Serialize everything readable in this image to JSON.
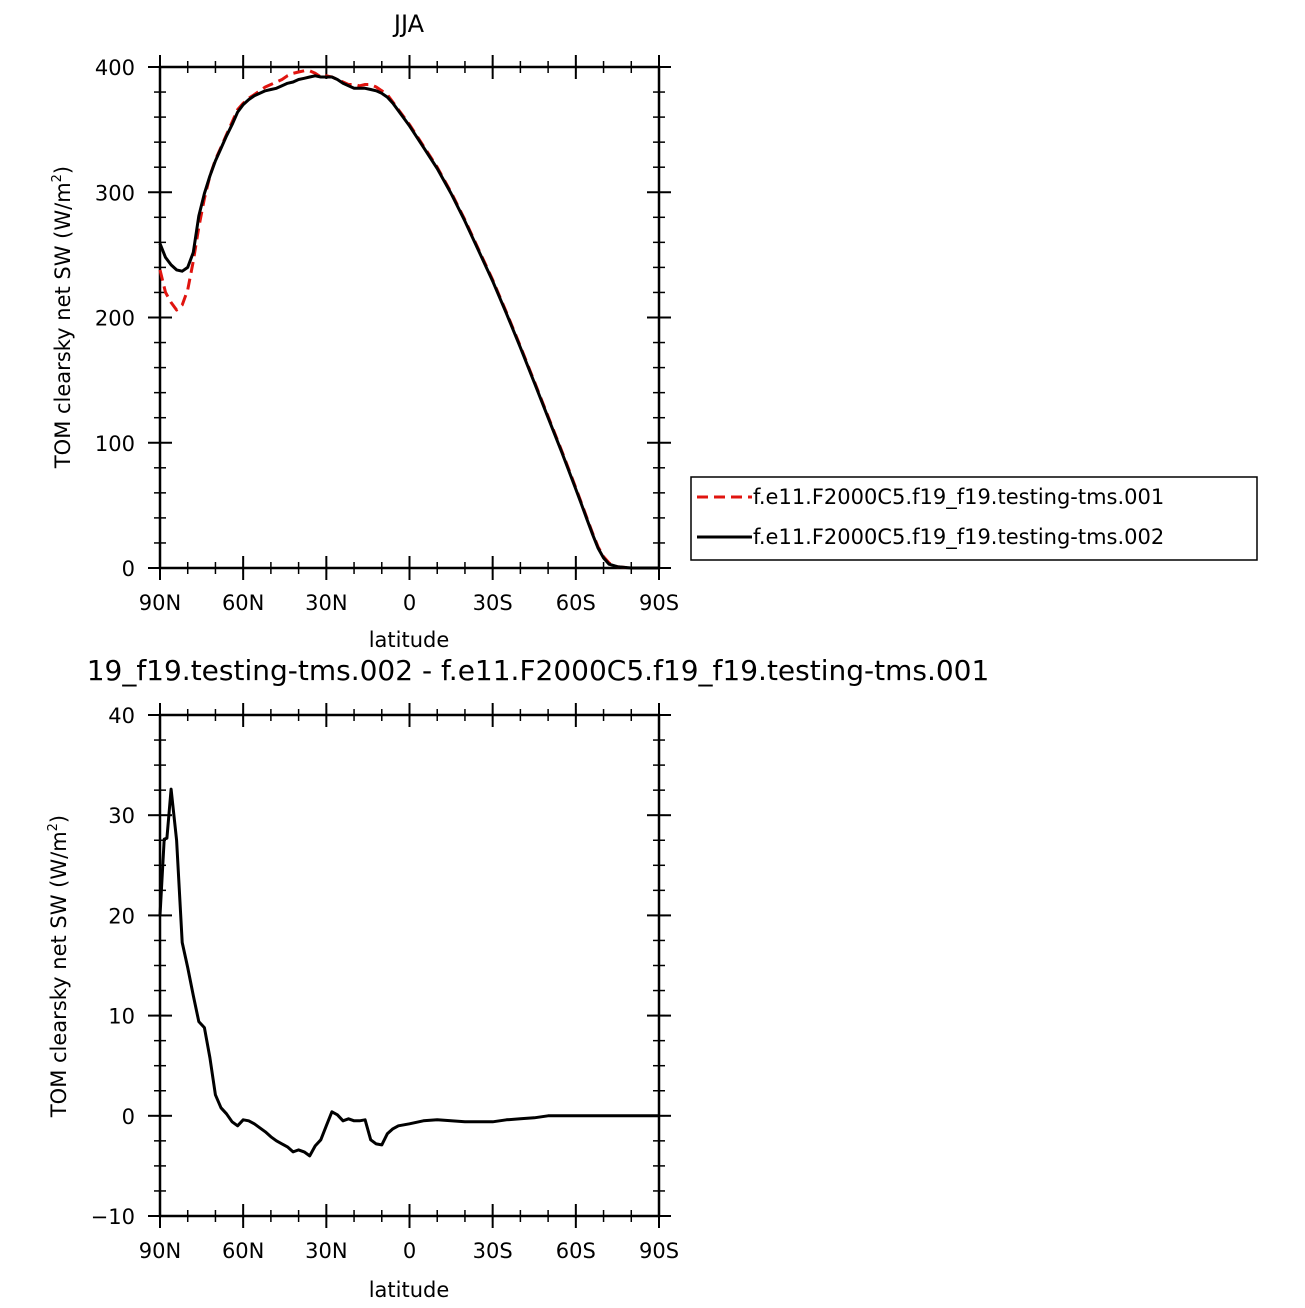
{
  "chart_data": [
    {
      "type": "line",
      "title": "JJA",
      "xlabel": "latitude",
      "ylabel_main": "TOM clearsky net SW (W/m",
      "ylabel_sup": "2",
      "ylabel_end": ")",
      "xlim": [
        90,
        -90
      ],
      "ylim": [
        0,
        400
      ],
      "xticks": [
        90,
        60,
        30,
        0,
        -30,
        -60,
        -90
      ],
      "xtick_labels": [
        "90N",
        "60N",
        "30N",
        "0",
        "30S",
        "60S",
        "90S"
      ],
      "yticks": [
        0,
        100,
        200,
        300,
        400
      ],
      "ytick_labels": [
        "0",
        "100",
        "200",
        "300",
        "400"
      ],
      "legend": "right",
      "series": [
        {
          "name": "f.e11.F2000C5.f19_f19.testing-tms.001",
          "color": "#e0140f",
          "dash": "dashed",
          "x": [
            90,
            88,
            86,
            84,
            82,
            80,
            78,
            76,
            74,
            72,
            70,
            68,
            66,
            64,
            62,
            60,
            58,
            56,
            54,
            52,
            50,
            48,
            46,
            44,
            42,
            40,
            38,
            36,
            34,
            32,
            30,
            28,
            26,
            24,
            22,
            20,
            18,
            16,
            14,
            12,
            10,
            8,
            6,
            4,
            2,
            0,
            -5,
            -10,
            -15,
            -20,
            -25,
            -30,
            -35,
            -40,
            -45,
            -50,
            -55,
            -60,
            -62,
            -64,
            -66,
            -68,
            -70,
            -72,
            -75,
            -80,
            -85,
            -90
          ],
          "y": [
            238,
            220,
            212,
            206,
            210,
            222,
            245,
            272,
            295,
            313,
            326,
            336,
            346,
            356,
            366,
            371,
            375,
            378,
            381,
            384,
            386,
            388,
            390,
            393,
            395,
            396,
            397,
            397,
            395,
            392,
            393,
            392,
            390,
            388,
            386,
            386,
            385,
            386,
            386,
            384,
            381,
            378,
            372,
            366,
            360,
            354,
            337,
            320,
            300,
            278,
            254,
            230,
            204,
            177,
            149,
            121,
            93,
            64,
            52,
            40,
            28,
            17,
            9,
            4,
            1,
            0,
            0,
            0
          ]
        },
        {
          "name": "f.e11.F2000C5.f19_f19.testing-tms.002",
          "color": "#000000",
          "dash": "solid",
          "x": [
            90,
            88,
            86,
            84,
            82,
            80,
            78,
            76,
            74,
            72,
            70,
            68,
            66,
            64,
            62,
            60,
            58,
            56,
            54,
            52,
            50,
            48,
            46,
            44,
            42,
            40,
            38,
            36,
            34,
            32,
            30,
            28,
            26,
            24,
            22,
            20,
            18,
            16,
            14,
            12,
            10,
            8,
            6,
            4,
            2,
            0,
            -5,
            -10,
            -15,
            -20,
            -25,
            -30,
            -35,
            -40,
            -45,
            -50,
            -55,
            -60,
            -62,
            -64,
            -66,
            -68,
            -70,
            -72,
            -75,
            -80,
            -85,
            -90
          ],
          "y": [
            259,
            248,
            242,
            238,
            237,
            240,
            252,
            281,
            299,
            313,
            325,
            335,
            345,
            354,
            364,
            370,
            374,
            377,
            379,
            381,
            382,
            383,
            385,
            387,
            388,
            390,
            391,
            392,
            393,
            392,
            392,
            392,
            390,
            387,
            385,
            383,
            383,
            383,
            382,
            381,
            379,
            376,
            371,
            365,
            359,
            353,
            336,
            319,
            299,
            277,
            253,
            229,
            203,
            176,
            148,
            120,
            92,
            63,
            51,
            39,
            27,
            16,
            8,
            3,
            1,
            0,
            0,
            0
          ]
        }
      ]
    },
    {
      "type": "line",
      "title": "19_f19.testing-tms.002 - f.e11.F2000C5.f19_f19.testing-tms.001",
      "xlabel": "latitude",
      "ylabel_main": "TOM clearsky net SW (W/m",
      "ylabel_sup": "2",
      "ylabel_end": ")",
      "xlim": [
        90,
        -90
      ],
      "ylim": [
        -10,
        40
      ],
      "xticks": [
        90,
        60,
        30,
        0,
        -30,
        -60,
        -90
      ],
      "xtick_labels": [
        "90N",
        "60N",
        "30N",
        "0",
        "30S",
        "60S",
        "90S"
      ],
      "yticks": [
        -10,
        0,
        10,
        20,
        30,
        40
      ],
      "ytick_labels": [
        "−10",
        "0",
        "10",
        "20",
        "30",
        "40"
      ],
      "series": [
        {
          "color": "#000000",
          "dash": "solid",
          "x": [
            90,
            88.5,
            87.5,
            86,
            84,
            82,
            80,
            78,
            76,
            74,
            72,
            70,
            68,
            66,
            64,
            62,
            60,
            58,
            56,
            54,
            52,
            50,
            48,
            46,
            44,
            42,
            40,
            38,
            36,
            34,
            32,
            30,
            28,
            26,
            24,
            22,
            20,
            18,
            16,
            14,
            12,
            10,
            8,
            6,
            4,
            2,
            0,
            -5,
            -10,
            -15,
            -20,
            -25,
            -30,
            -35,
            -40,
            -45,
            -50,
            -55,
            -60,
            -65,
            -70,
            -75,
            -80,
            -85,
            -90
          ],
          "y": [
            20,
            27.6,
            27.7,
            32.6,
            27.5,
            17.3,
            14.8,
            12,
            9.4,
            8.8,
            5.8,
            2.1,
            0.8,
            0.2,
            -0.6,
            -1.0,
            -0.4,
            -0.5,
            -0.8,
            -1.2,
            -1.6,
            -2.1,
            -2.5,
            -2.8,
            -3.1,
            -3.6,
            -3.4,
            -3.6,
            -4.0,
            -3.0,
            -2.4,
            -1.0,
            0.4,
            0.1,
            -0.5,
            -0.3,
            -0.5,
            -0.5,
            -0.4,
            -2.4,
            -2.8,
            -2.9,
            -1.8,
            -1.3,
            -1.0,
            -0.9,
            -0.8,
            -0.5,
            -0.4,
            -0.5,
            -0.6,
            -0.6,
            -0.6,
            -0.4,
            -0.3,
            -0.2,
            0,
            0,
            0,
            0,
            0,
            0,
            0,
            0,
            0
          ]
        }
      ]
    }
  ]
}
